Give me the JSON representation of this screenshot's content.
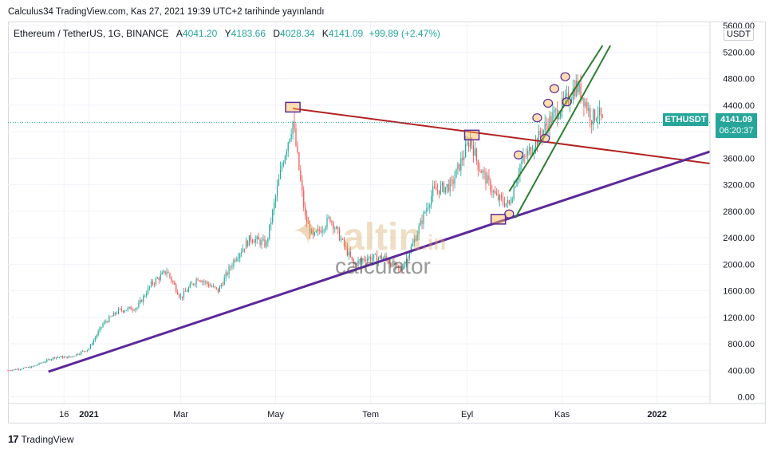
{
  "header": {
    "published": "Calculus34 TradingView.com, Kas 27, 2021 19:39 UTC+2 tarihinde yayınlandı"
  },
  "legend": {
    "symbol": "Ethereum / TetherUS, 1G, BINANCE",
    "open_label": "A",
    "open": "4041.20",
    "high_label": "Y",
    "high": "4183.66",
    "low_label": "D",
    "low": "4028.34",
    "close_label": "K",
    "close": "4141.09",
    "change": "+99.89 (+2.47%)"
  },
  "price_axis": {
    "currency": "USDT"
  },
  "last_price": {
    "ticker": "ETHUSDT",
    "price": "4141.09",
    "countdown": "06:20:37"
  },
  "watermark": {
    "main": "altin",
    "suffix": ".in",
    "sub": "calculator"
  },
  "footer": {
    "brand": "TradingView",
    "brand_mark": "17"
  },
  "colors": {
    "up": "#26a69a",
    "down": "#ef5350",
    "support": "#5b2a9b",
    "resistance": "#b22222",
    "channel": "#2e7d32"
  },
  "chart_data": {
    "type": "candlestick",
    "title": "Ethereum / TetherUS, 1G, BINANCE",
    "y_ticks": [
      0,
      400,
      800,
      1200,
      1600,
      2000,
      2400,
      2800,
      3200,
      3600,
      4000,
      4400,
      4800,
      5200,
      5600
    ],
    "y_tick_labels": [
      "0.00",
      "400.00",
      "800.00",
      "1200.00",
      "1600.00",
      "2000.00",
      "2400.00",
      "2800.00",
      "3200.00",
      "3600.00",
      "4000.00",
      "4400.00",
      "4800.00",
      "5200.00",
      "5600.00"
    ],
    "ylim": [
      -100,
      5650
    ],
    "x_ticks": [
      {
        "label": "16",
        "date": "2020-12-16"
      },
      {
        "label": "2021",
        "date": "2021-01-01"
      },
      {
        "label": "Mar",
        "date": "2021-03-01"
      },
      {
        "label": "May",
        "date": "2021-05-01"
      },
      {
        "label": "Tem",
        "date": "2021-07-01"
      },
      {
        "label": "Eyl",
        "date": "2021-09-01"
      },
      {
        "label": "Kas",
        "date": "2021-11-01"
      },
      {
        "label": "2022",
        "date": "2022-01-01"
      }
    ],
    "xlim": [
      "2020-11-10",
      "2022-01-35"
    ],
    "price_path": [
      [
        "2020-11-10",
        400
      ],
      [
        "2020-11-25",
        450
      ],
      [
        "2020-12-10",
        600
      ],
      [
        "2020-12-20",
        600
      ],
      [
        "2021-01-01",
        730
      ],
      [
        "2021-01-10",
        1100
      ],
      [
        "2021-01-20",
        1300
      ],
      [
        "2021-02-01",
        1350
      ],
      [
        "2021-02-10",
        1700
      ],
      [
        "2021-02-20",
        1900
      ],
      [
        "2021-03-01",
        1500
      ],
      [
        "2021-03-12",
        1800
      ],
      [
        "2021-03-25",
        1600
      ],
      [
        "2021-04-05",
        2100
      ],
      [
        "2021-04-15",
        2400
      ],
      [
        "2021-04-25",
        2300
      ],
      [
        "2021-05-05",
        3500
      ],
      [
        "2021-05-12",
        4150
      ],
      [
        "2021-05-20",
        2700
      ],
      [
        "2021-05-25",
        2400
      ],
      [
        "2021-06-05",
        2700
      ],
      [
        "2021-06-20",
        2000
      ],
      [
        "2021-06-28",
        2100
      ],
      [
        "2021-07-10",
        2100
      ],
      [
        "2021-07-20",
        1900
      ],
      [
        "2021-07-28",
        2300
      ],
      [
        "2021-08-10",
        3100
      ],
      [
        "2021-08-22",
        3200
      ],
      [
        "2021-09-03",
        3900
      ],
      [
        "2021-09-08",
        3500
      ],
      [
        "2021-09-20",
        3000
      ],
      [
        "2021-09-28",
        2900
      ],
      [
        "2021-10-05",
        3500
      ],
      [
        "2021-10-15",
        3850
      ],
      [
        "2021-10-25",
        4200
      ],
      [
        "2021-11-05",
        4500
      ],
      [
        "2021-11-10",
        4700
      ],
      [
        "2021-11-15",
        4500
      ],
      [
        "2021-11-20",
        4200
      ],
      [
        "2021-11-24",
        4300
      ],
      [
        "2021-11-27",
        4141
      ]
    ],
    "drawings": [
      {
        "kind": "resistance",
        "from": [
          "2021-05-12",
          4350
        ],
        "to": [
          "2022-01-35",
          3520
        ]
      },
      {
        "kind": "support",
        "from": [
          "2020-12-06",
          380
        ],
        "to": [
          "2022-01-35",
          3700
        ]
      },
      {
        "kind": "channel",
        "from": [
          "2021-09-28",
          3100
        ],
        "to": [
          "2021-11-27",
          5300
        ]
      },
      {
        "kind": "channel",
        "from": [
          "2021-10-02",
          2700
        ],
        "to": [
          "2021-12-02",
          5300
        ]
      }
    ],
    "markers": [
      {
        "shape": "box",
        "at": [
          "2021-05-12",
          4370
        ]
      },
      {
        "shape": "box",
        "at": [
          "2021-09-04",
          3950
        ]
      },
      {
        "shape": "box",
        "at": [
          "2021-09-21",
          2680
        ]
      },
      {
        "shape": "ellipse",
        "at": [
          "2021-09-28",
          2760
        ]
      },
      {
        "shape": "ellipse",
        "at": [
          "2021-10-04",
          3650
        ]
      },
      {
        "shape": "ellipse",
        "at": [
          "2021-10-16",
          4210
        ]
      },
      {
        "shape": "ellipse",
        "at": [
          "2021-10-23",
          4430
        ]
      },
      {
        "shape": "ellipse",
        "at": [
          "2021-10-27",
          4650
        ]
      },
      {
        "shape": "ellipse",
        "at": [
          "2021-11-03",
          4830
        ]
      },
      {
        "shape": "ellipse",
        "at": [
          "2021-11-04",
          4450
        ]
      },
      {
        "shape": "ellipse",
        "at": [
          "2021-10-21",
          3900
        ]
      }
    ],
    "last": 4141.09,
    "grid": true
  }
}
